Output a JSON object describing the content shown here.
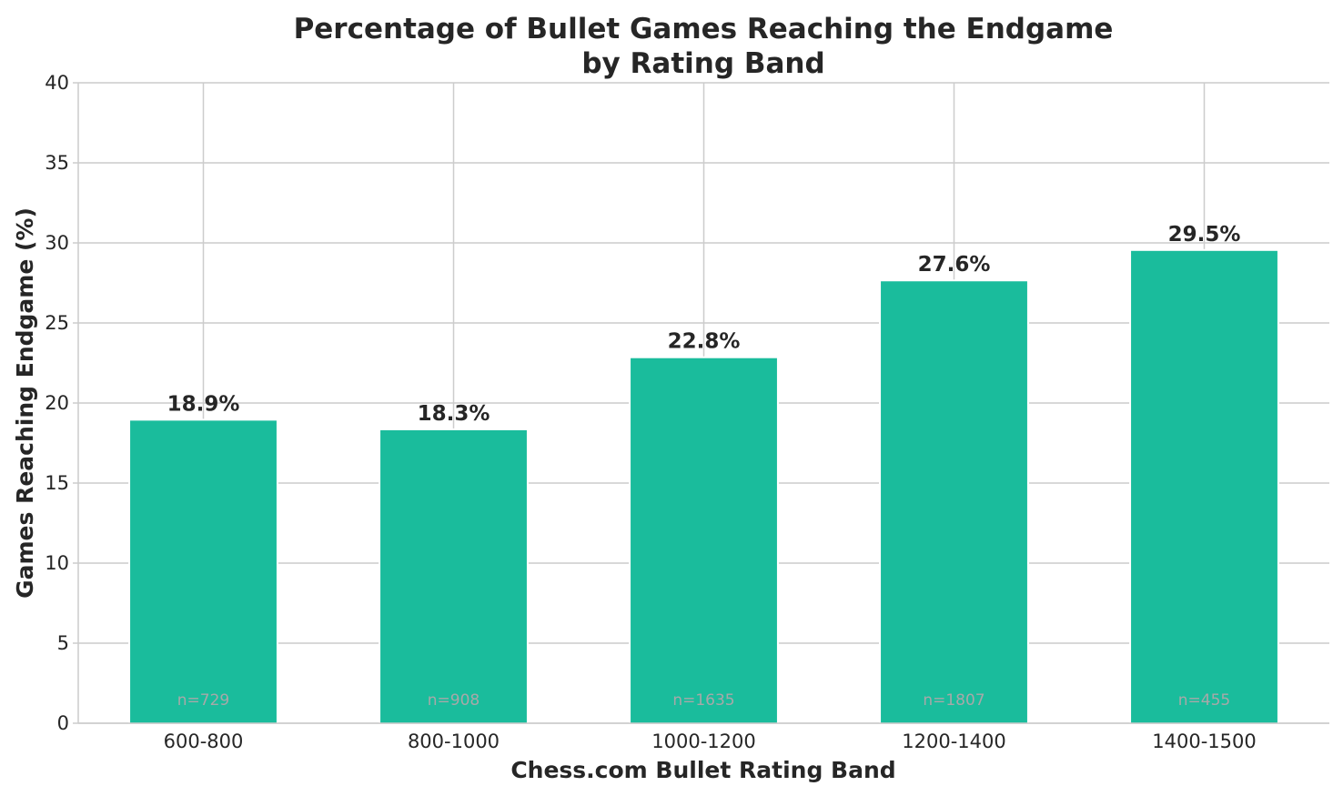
{
  "chart_data": {
    "type": "bar",
    "title": [
      "Percentage of Bullet Games Reaching the Endgame",
      "by Rating Band"
    ],
    "xlabel": "Chess.com Bullet Rating Band",
    "ylabel": "Games Reaching Endgame (%)",
    "categories": [
      "600-800",
      "800-1000",
      "1000-1200",
      "1200-1400",
      "1400-1500"
    ],
    "values": [
      18.9,
      18.3,
      22.8,
      27.6,
      29.5
    ],
    "value_labels": [
      "18.9%",
      "18.3%",
      "22.8%",
      "27.6%",
      "29.5%"
    ],
    "sample_labels": [
      "n=729",
      "n=908",
      "n=1635",
      "n=1807",
      "n=455"
    ],
    "ylim": [
      0,
      40
    ],
    "yticks": [
      0,
      5,
      10,
      15,
      20,
      25,
      30,
      35,
      40
    ],
    "grid": true,
    "bar_color": "#1abc9c",
    "grid_color": "#cccccc",
    "text_color": "#262626",
    "sample_label_color": "#a8a8a8"
  }
}
